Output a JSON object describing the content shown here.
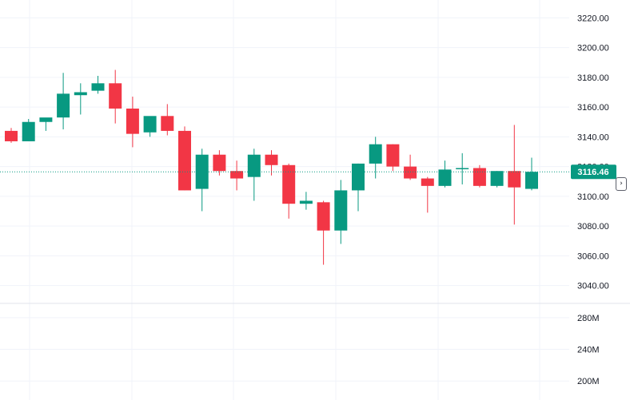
{
  "chart_data": [
    {
      "type": "candlestick",
      "title": "",
      "price_axis": {
        "ticks": [
          "3220.00",
          "3200.00",
          "3180.00",
          "3160.00",
          "3140.00",
          "3120.00",
          "3100.00",
          "3080.00",
          "3060.00",
          "3040.00"
        ],
        "ylim": [
          3028,
          3232
        ]
      },
      "last_price": "3116.46",
      "last_price_value": 3116.46,
      "colors": {
        "up": "#089981",
        "down": "#f23645",
        "grid": "#f0f3fa",
        "last_price_line": "#089981",
        "axis_text": "#131722"
      },
      "grid": true,
      "candles": [
        {
          "o": 3144,
          "h": 3146,
          "l": 3136,
          "c": 3137
        },
        {
          "o": 3137,
          "h": 3152,
          "l": 3137,
          "c": 3150
        },
        {
          "o": 3150,
          "h": 3152,
          "l": 3144,
          "c": 3153
        },
        {
          "o": 3153,
          "h": 3183,
          "l": 3145,
          "c": 3169
        },
        {
          "o": 3168,
          "h": 3176,
          "l": 3155,
          "c": 3170
        },
        {
          "o": 3171,
          "h": 3181,
          "l": 3169,
          "c": 3176
        },
        {
          "o": 3176,
          "h": 3185,
          "l": 3149,
          "c": 3159
        },
        {
          "o": 3159,
          "h": 3167,
          "l": 3133,
          "c": 3142
        },
        {
          "o": 3143,
          "h": 3153,
          "l": 3140,
          "c": 3154
        },
        {
          "o": 3154,
          "h": 3162,
          "l": 3141,
          "c": 3144
        },
        {
          "o": 3144,
          "h": 3147,
          "l": 3104,
          "c": 3104
        },
        {
          "o": 3105,
          "h": 3132,
          "l": 3090,
          "c": 3128
        },
        {
          "o": 3128,
          "h": 3131,
          "l": 3114,
          "c": 3117
        },
        {
          "o": 3117,
          "h": 3124,
          "l": 3104,
          "c": 3112
        },
        {
          "o": 3113,
          "h": 3132,
          "l": 3097,
          "c": 3128
        },
        {
          "o": 3128,
          "h": 3131,
          "l": 3114,
          "c": 3121
        },
        {
          "o": 3121,
          "h": 3122,
          "l": 3085,
          "c": 3095
        },
        {
          "o": 3095,
          "h": 3103,
          "l": 3091,
          "c": 3097
        },
        {
          "o": 3096,
          "h": 3097,
          "l": 3054,
          "c": 3077
        },
        {
          "o": 3077,
          "h": 3111,
          "l": 3068,
          "c": 3104
        },
        {
          "o": 3104,
          "h": 3122,
          "l": 3090,
          "c": 3122
        },
        {
          "o": 3122,
          "h": 3140,
          "l": 3112,
          "c": 3135
        },
        {
          "o": 3135,
          "h": 3135,
          "l": 3117,
          "c": 3120
        },
        {
          "o": 3120,
          "h": 3128,
          "l": 3111,
          "c": 3112
        },
        {
          "o": 3112,
          "h": 3113,
          "l": 3089,
          "c": 3107
        },
        {
          "o": 3107,
          "h": 3124,
          "l": 3106,
          "c": 3118
        },
        {
          "o": 3119,
          "h": 3129,
          "l": 3108,
          "c": 3119
        },
        {
          "o": 3119,
          "h": 3121,
          "l": 3106,
          "c": 3107
        },
        {
          "o": 3107,
          "h": 3117,
          "l": 3106,
          "c": 3117
        },
        {
          "o": 3117,
          "h": 3148,
          "l": 3081,
          "c": 3106
        },
        {
          "o": 3105,
          "h": 3126,
          "l": 3104,
          "c": 3116.46
        }
      ]
    },
    {
      "type": "volume-axis",
      "ticks": [
        "280M",
        "240M",
        "200M"
      ],
      "ylim": [
        176,
        297
      ]
    }
  ],
  "scale_handle": {
    "icon": "chevron-right-icon",
    "glyph": "›"
  }
}
